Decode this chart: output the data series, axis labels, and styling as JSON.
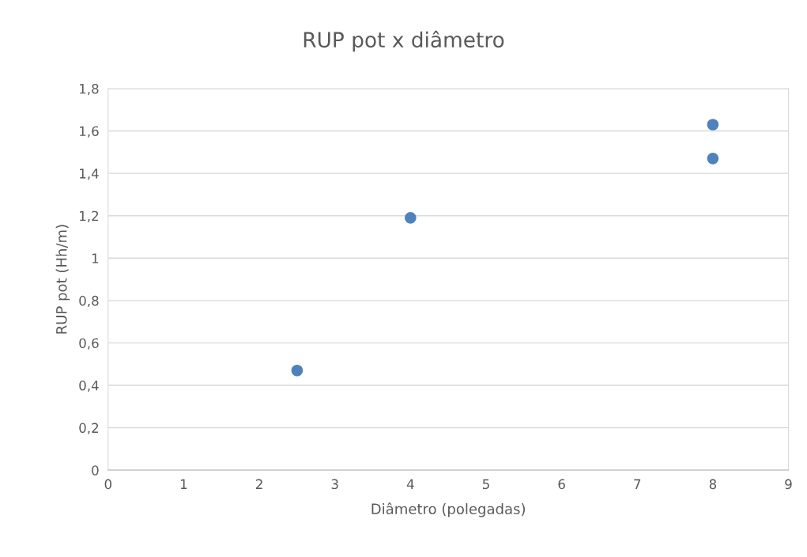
{
  "chart_data": {
    "type": "scatter",
    "title": "RUP pot x diâmetro",
    "xlabel": "Diâmetro (polegadas)",
    "ylabel": "RUP pot (Hh/m)",
    "x": [
      2.5,
      4,
      8,
      8
    ],
    "series": [
      {
        "color": "#4f81bd",
        "values": [
          0.47,
          1.19,
          1.63,
          1.47
        ]
      }
    ],
    "xlim": [
      0,
      9
    ],
    "xticks": [
      0,
      1,
      2,
      3,
      4,
      5,
      6,
      7,
      8,
      9
    ],
    "ylim": [
      0,
      1.8
    ],
    "yticks": [
      0,
      {
        "value": 0.2,
        "label": "0,2"
      },
      {
        "value": 0.4,
        "label": "0,4"
      },
      {
        "value": 0.6,
        "label": "0,6"
      },
      {
        "value": 0.8,
        "label": "0,8"
      },
      1,
      {
        "value": 1.2,
        "label": "1,2"
      },
      {
        "value": 1.4,
        "label": "1,4"
      },
      {
        "value": 1.6,
        "label": "1,6"
      },
      {
        "value": 1.8,
        "label": "1,8"
      }
    ],
    "grid": "y",
    "marker": "circle"
  }
}
